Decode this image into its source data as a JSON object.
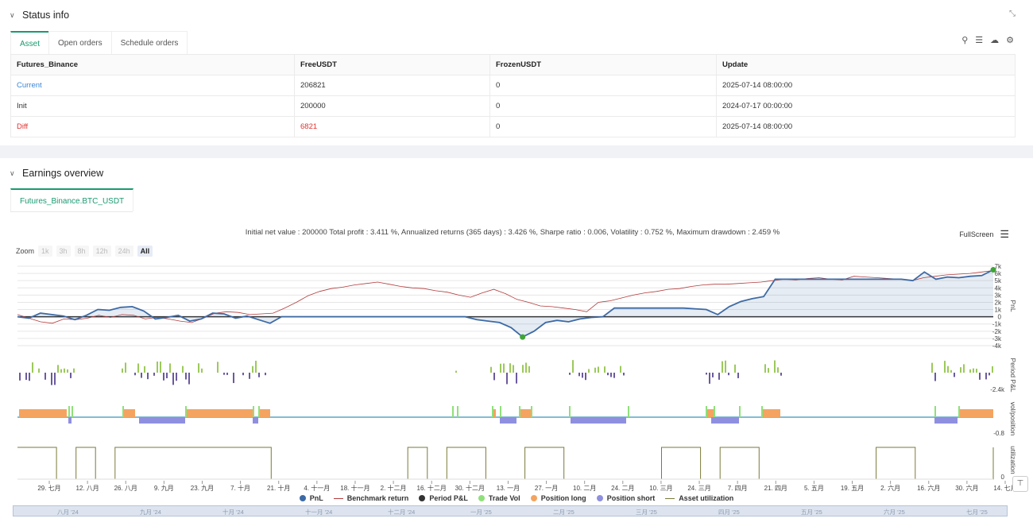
{
  "status": {
    "title": "Status info",
    "tabs": [
      "Asset",
      "Open orders",
      "Schedule orders"
    ],
    "table": {
      "headers": [
        "Futures_Binance",
        "FreeUSDT",
        "FrozenUSDT",
        "Update"
      ],
      "rows": [
        [
          "Current",
          "206821",
          "0",
          "2025-07-14 08:00:00"
        ],
        [
          "Init",
          "200000",
          "0",
          "2024-07-17 00:00:00"
        ],
        [
          "Diff",
          "6821",
          "0",
          "2025-07-14 08:00:00"
        ]
      ]
    },
    "icons": [
      "search-icon",
      "list-icon",
      "cloud-icon",
      "gear-icon"
    ]
  },
  "earnings": {
    "title": "Earnings overview",
    "tab": "Futures_Binance.BTC_USDT",
    "summary": "Initial net value : 200000 Total profit : 3.411 %, Annualized returns (365 days) : 3.426 %, Sharpe ratio : 0.006, Volatility : 0.752 %, Maximum drawdown : 2.459 %",
    "fullscreen": "FullScreen",
    "zoom_label": "Zoom",
    "zoom_options": [
      "1k",
      "3h",
      "8h",
      "12h",
      "24h",
      "All"
    ],
    "legend": [
      "PnL",
      "Benchmark return",
      "Period P&L",
      "Trade Vol",
      "Position long",
      "Position short",
      "Asset utilization"
    ],
    "navigator_labels": [
      "八月 '24",
      "九月 '24",
      "十月 '24",
      "十一月 '24",
      "十二月 '24",
      "一月 '25",
      "二月 '25",
      "三月 '25",
      "四月 '25",
      "五月 '25",
      "六月 '25",
      "七月 '25"
    ]
  },
  "chart_data": {
    "type": "line",
    "x_ticks": [
      "29. 七月",
      "12. 八月",
      "26. 八月",
      "9. 九月",
      "23. 九月",
      "7. 十月",
      "21. 十月",
      "4. 十一月",
      "18. 十一月",
      "2. 十二月",
      "16. 十二月",
      "30. 十二月",
      "13. 一月",
      "27. 一月",
      "10. 二月",
      "24. 二月",
      "10. 三月",
      "24. 三月",
      "7. 四月",
      "21. 四月",
      "5. 五月",
      "19. 五月",
      "2. 六月",
      "16. 六月",
      "30. 六月",
      "14. 七月"
    ],
    "pnl_axis": {
      "label": "PnL",
      "ticks": [
        "7k",
        "6k",
        "5k",
        "4k",
        "3k",
        "2k",
        "1k",
        "0",
        "-1k",
        "-2k",
        "-3k",
        "-4k"
      ],
      "ylim": [
        -4000,
        7000
      ]
    },
    "period_axis": {
      "label": "Period P&L",
      "ticks": [
        "-2.4k"
      ]
    },
    "position_axis": {
      "label": "vol/position",
      "ticks": [
        "-0.8"
      ]
    },
    "util_axis": {
      "label": "utilization",
      "ticks": [
        "0"
      ]
    },
    "series": [
      {
        "name": "PnL",
        "color": "#3d6aa5",
        "values": [
          0,
          -200,
          500,
          300,
          100,
          -400,
          200,
          1000,
          900,
          1300,
          1400,
          800,
          -300,
          -100,
          200,
          -600,
          -300,
          500,
          400,
          -200,
          100,
          -400,
          -900,
          0,
          0,
          0,
          0,
          0,
          0,
          0,
          0,
          0,
          0,
          0,
          0,
          0,
          0,
          0,
          0,
          0,
          -400,
          -600,
          -800,
          -1500,
          -2800,
          -2000,
          -800,
          -500,
          -700,
          -300,
          -100,
          0,
          1200,
          1200,
          1200,
          1200,
          1200,
          1200,
          1200,
          1100,
          1000,
          300,
          1400,
          2100,
          2500,
          2800,
          5200,
          5200,
          5200,
          5200,
          5200,
          5200,
          5200,
          5200,
          5200,
          5200,
          5200,
          5200,
          5000,
          6200,
          5200,
          5500,
          5400,
          5600,
          5700,
          6500
        ]
      },
      {
        "name": "Benchmark return",
        "color": "#b33b3b",
        "values": [
          300,
          -200,
          -700,
          -900,
          -300,
          -400,
          -200,
          200,
          -100,
          300,
          200,
          -300,
          -100,
          -300,
          -600,
          -800,
          -200,
          500,
          700,
          600,
          300,
          400,
          500,
          1200,
          2000,
          2900,
          3500,
          3900,
          4100,
          4400,
          4600,
          4800,
          4500,
          4200,
          4000,
          3900,
          3600,
          3400,
          3000,
          2700,
          3300,
          3800,
          3200,
          2400,
          2000,
          1500,
          1400,
          1200,
          1000,
          700,
          2000,
          2200,
          2600,
          3000,
          3300,
          3500,
          3800,
          3900,
          4200,
          4400,
          4500,
          4500,
          4600,
          4700,
          4800,
          5000,
          5200,
          5100,
          5300,
          5400,
          5200,
          5100,
          5600,
          5500,
          5400,
          5300,
          5200,
          5000,
          5400,
          5600,
          5800,
          5900,
          6000,
          6200,
          6400
        ]
      },
      {
        "name": "Asset utilization",
        "color": "#7a7a3a",
        "values": [
          1,
          1,
          0,
          1,
          0,
          1,
          1,
          1,
          1,
          1,
          1,
          1,
          1,
          0,
          0,
          0,
          0,
          0,
          0,
          0,
          1,
          0,
          1,
          1,
          0,
          0,
          1,
          1,
          0,
          0,
          0,
          0,
          0,
          1,
          1,
          0,
          1,
          1,
          0,
          0,
          0,
          0,
          0,
          0,
          1,
          1,
          0,
          0,
          0,
          0,
          1
        ]
      }
    ]
  }
}
